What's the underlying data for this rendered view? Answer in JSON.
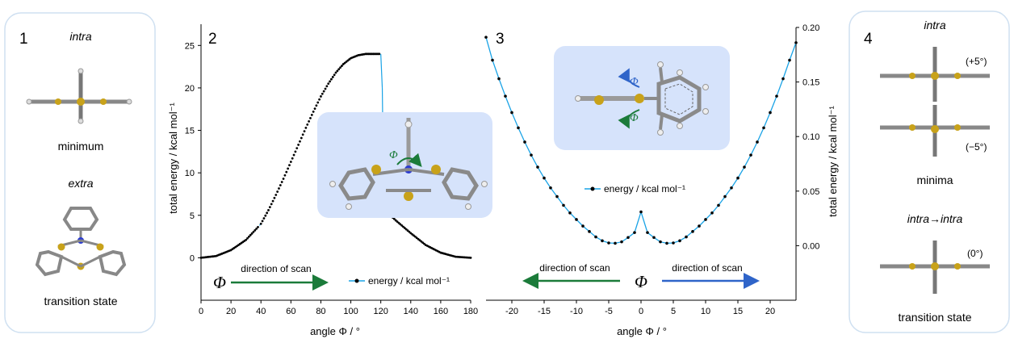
{
  "panels": {
    "p1": {
      "number": "1",
      "top_label": "intra",
      "top_caption": "minimum",
      "mid_label": "extra",
      "bottom_caption": "transition state"
    },
    "p4": {
      "number": "4",
      "top_label": "intra",
      "plus_label": "(+5°)",
      "minus_label": "(−5°)",
      "minima_caption": "minima",
      "mid_label": "intra→intra",
      "zero_label": "(0°)",
      "bottom_caption": "transition state"
    }
  },
  "chart_data": [
    {
      "panel": "2",
      "type": "scatter",
      "xlabel": "angle Φ / °",
      "ylabel": "total energy / kcal mol⁻¹",
      "xlim": [
        0,
        180
      ],
      "ylim": [
        -5,
        27.5
      ],
      "xticks": [
        "0",
        "20",
        "40",
        "60",
        "80",
        "100",
        "120",
        "140",
        "160",
        "180"
      ],
      "yticks": [
        "0",
        "5",
        "10",
        "15",
        "20",
        "25"
      ],
      "legend": "energy / kcal mol⁻¹",
      "scan_label": "direction of scan",
      "phi_symbol": "Φ",
      "inset_phi": "Φ",
      "series": [
        {
          "name": "energy / kcal mol⁻¹",
          "color": "#000000",
          "points": [
            [
              0,
              0
            ],
            [
              10,
              0.2
            ],
            [
              20,
              0.9
            ],
            [
              30,
              2.1
            ],
            [
              39,
              3.8
            ],
            [
              40,
              4.0
            ],
            [
              45,
              5.6
            ],
            [
              50,
              7.4
            ],
            [
              55,
              9.3
            ],
            [
              60,
              11.3
            ],
            [
              65,
              13.3
            ],
            [
              70,
              15.3
            ],
            [
              75,
              17.2
            ],
            [
              80,
              19.0
            ],
            [
              85,
              20.5
            ],
            [
              90,
              21.8
            ],
            [
              95,
              22.8
            ],
            [
              100,
              23.5
            ],
            [
              105,
              23.85
            ],
            [
              110,
              24.0
            ],
            [
              115,
              24.0
            ],
            [
              120,
              24.0
            ],
            [
              121,
              20.0
            ],
            [
              122,
              5.7
            ],
            [
              130,
              4.4
            ],
            [
              140,
              2.9
            ],
            [
              150,
              1.5
            ],
            [
              160,
              0.6
            ],
            [
              170,
              0.12
            ],
            [
              180,
              0
            ]
          ]
        }
      ]
    },
    {
      "panel": "3",
      "type": "line",
      "xlabel": "angle Φ / °",
      "ylabel": "total energy / kcal mol⁻¹",
      "xlim": [
        -24,
        24
      ],
      "ylim": [
        -0.05,
        0.2
      ],
      "xticks": [
        "-20",
        "-15",
        "-10",
        "-5",
        "0",
        "5",
        "10",
        "15",
        "20"
      ],
      "yticks": [
        "0.00",
        "0.05",
        "0.10",
        "0.15",
        "0.20"
      ],
      "legend": "energy / kcal mol⁻¹",
      "scan_left": "direction of scan",
      "scan_right": "direction of scan",
      "phi_symbol": "Φ",
      "inset_phi_top": "Φ",
      "inset_phi_bottom": "Φ",
      "line_color": "#1aa3e6",
      "series": [
        {
          "name": "energy / kcal mol⁻¹",
          "x": [
            -24,
            -23,
            -22,
            -21,
            -20,
            -19,
            -18,
            -17,
            -16,
            -15,
            -14,
            -13,
            -12,
            -11,
            -10,
            -9,
            -8,
            -7,
            -6,
            -5,
            -4,
            -3,
            -2,
            -1,
            0,
            1,
            2,
            3,
            4,
            5,
            6,
            7,
            8,
            9,
            10,
            11,
            12,
            13,
            14,
            15,
            16,
            17,
            18,
            19,
            20,
            21,
            22,
            23,
            24
          ],
          "y": [
            0.191,
            0.17,
            0.153,
            0.137,
            0.122,
            0.108,
            0.095,
            0.083,
            0.072,
            0.062,
            0.053,
            0.045,
            0.037,
            0.03,
            0.024,
            0.018,
            0.013,
            0.008,
            0.0045,
            0.0025,
            0.0022,
            0.0035,
            0.0075,
            0.012,
            0.031,
            0.012,
            0.0075,
            0.0035,
            0.0022,
            0.0025,
            0.0045,
            0.008,
            0.013,
            0.018,
            0.024,
            0.03,
            0.037,
            0.045,
            0.053,
            0.062,
            0.072,
            0.083,
            0.095,
            0.108,
            0.122,
            0.137,
            0.153,
            0.17,
            0.186
          ]
        }
      ]
    }
  ]
}
